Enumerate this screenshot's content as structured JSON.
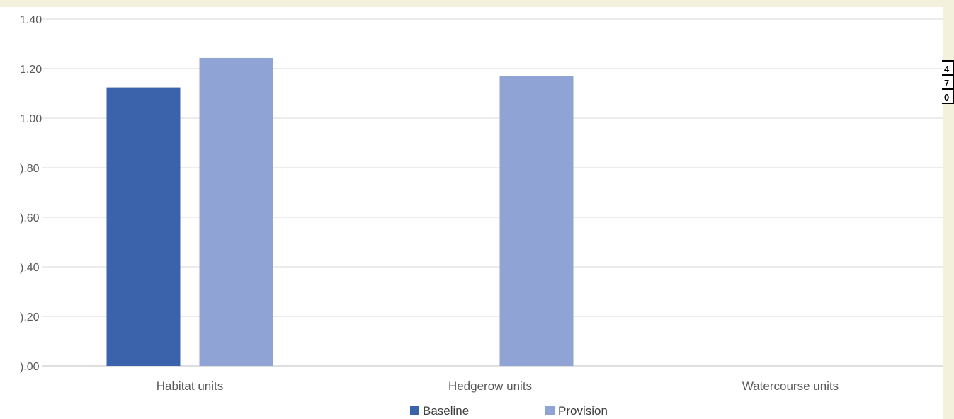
{
  "chart_data": {
    "type": "bar",
    "categories": [
      "Habitat units",
      "Hedgerow units",
      "Watercourse units"
    ],
    "series": [
      {
        "name": "Baseline",
        "color": "#3b63ac",
        "values": [
          1.124,
          0,
          0
        ]
      },
      {
        "name": "Provision",
        "color": "#8fa3d4",
        "values": [
          1.243,
          1.171,
          0
        ]
      }
    ],
    "y_tick_labels": [
      ").00",
      ").20",
      ").40",
      ").60",
      ").80",
      "1.00",
      "1.20",
      "1.40"
    ],
    "ylim": [
      0,
      1.4
    ],
    "y_step": 0.2,
    "grid": true,
    "legend_position": "bottom"
  },
  "side_cells": [
    "4",
    "7",
    "0"
  ]
}
